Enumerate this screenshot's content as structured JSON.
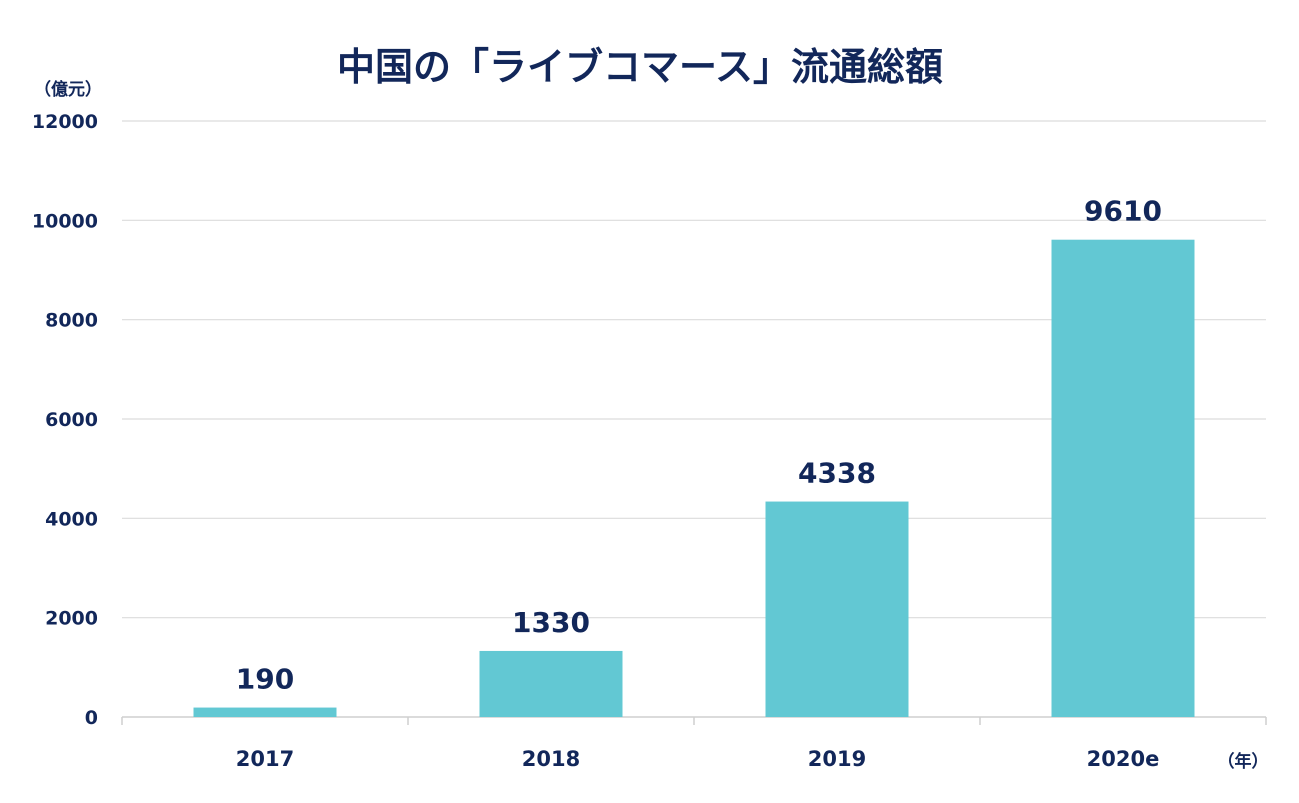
{
  "chart_data": {
    "type": "bar",
    "title": "中国の「ライブコマース」流通総額",
    "ylabel": "（億元）",
    "xlabel": "（年）",
    "categories": [
      "2017",
      "2018",
      "2019",
      "2020e"
    ],
    "values": [
      190,
      1330,
      4338,
      9610
    ],
    "data_labels": [
      "190",
      "1330",
      "4338",
      "9610"
    ],
    "ylim": [
      0,
      12000
    ],
    "yticks": [
      0,
      2000,
      4000,
      6000,
      8000,
      10000,
      12000
    ],
    "grid": true,
    "bar_color": "#62c8d3",
    "text_color": "#12275a"
  }
}
